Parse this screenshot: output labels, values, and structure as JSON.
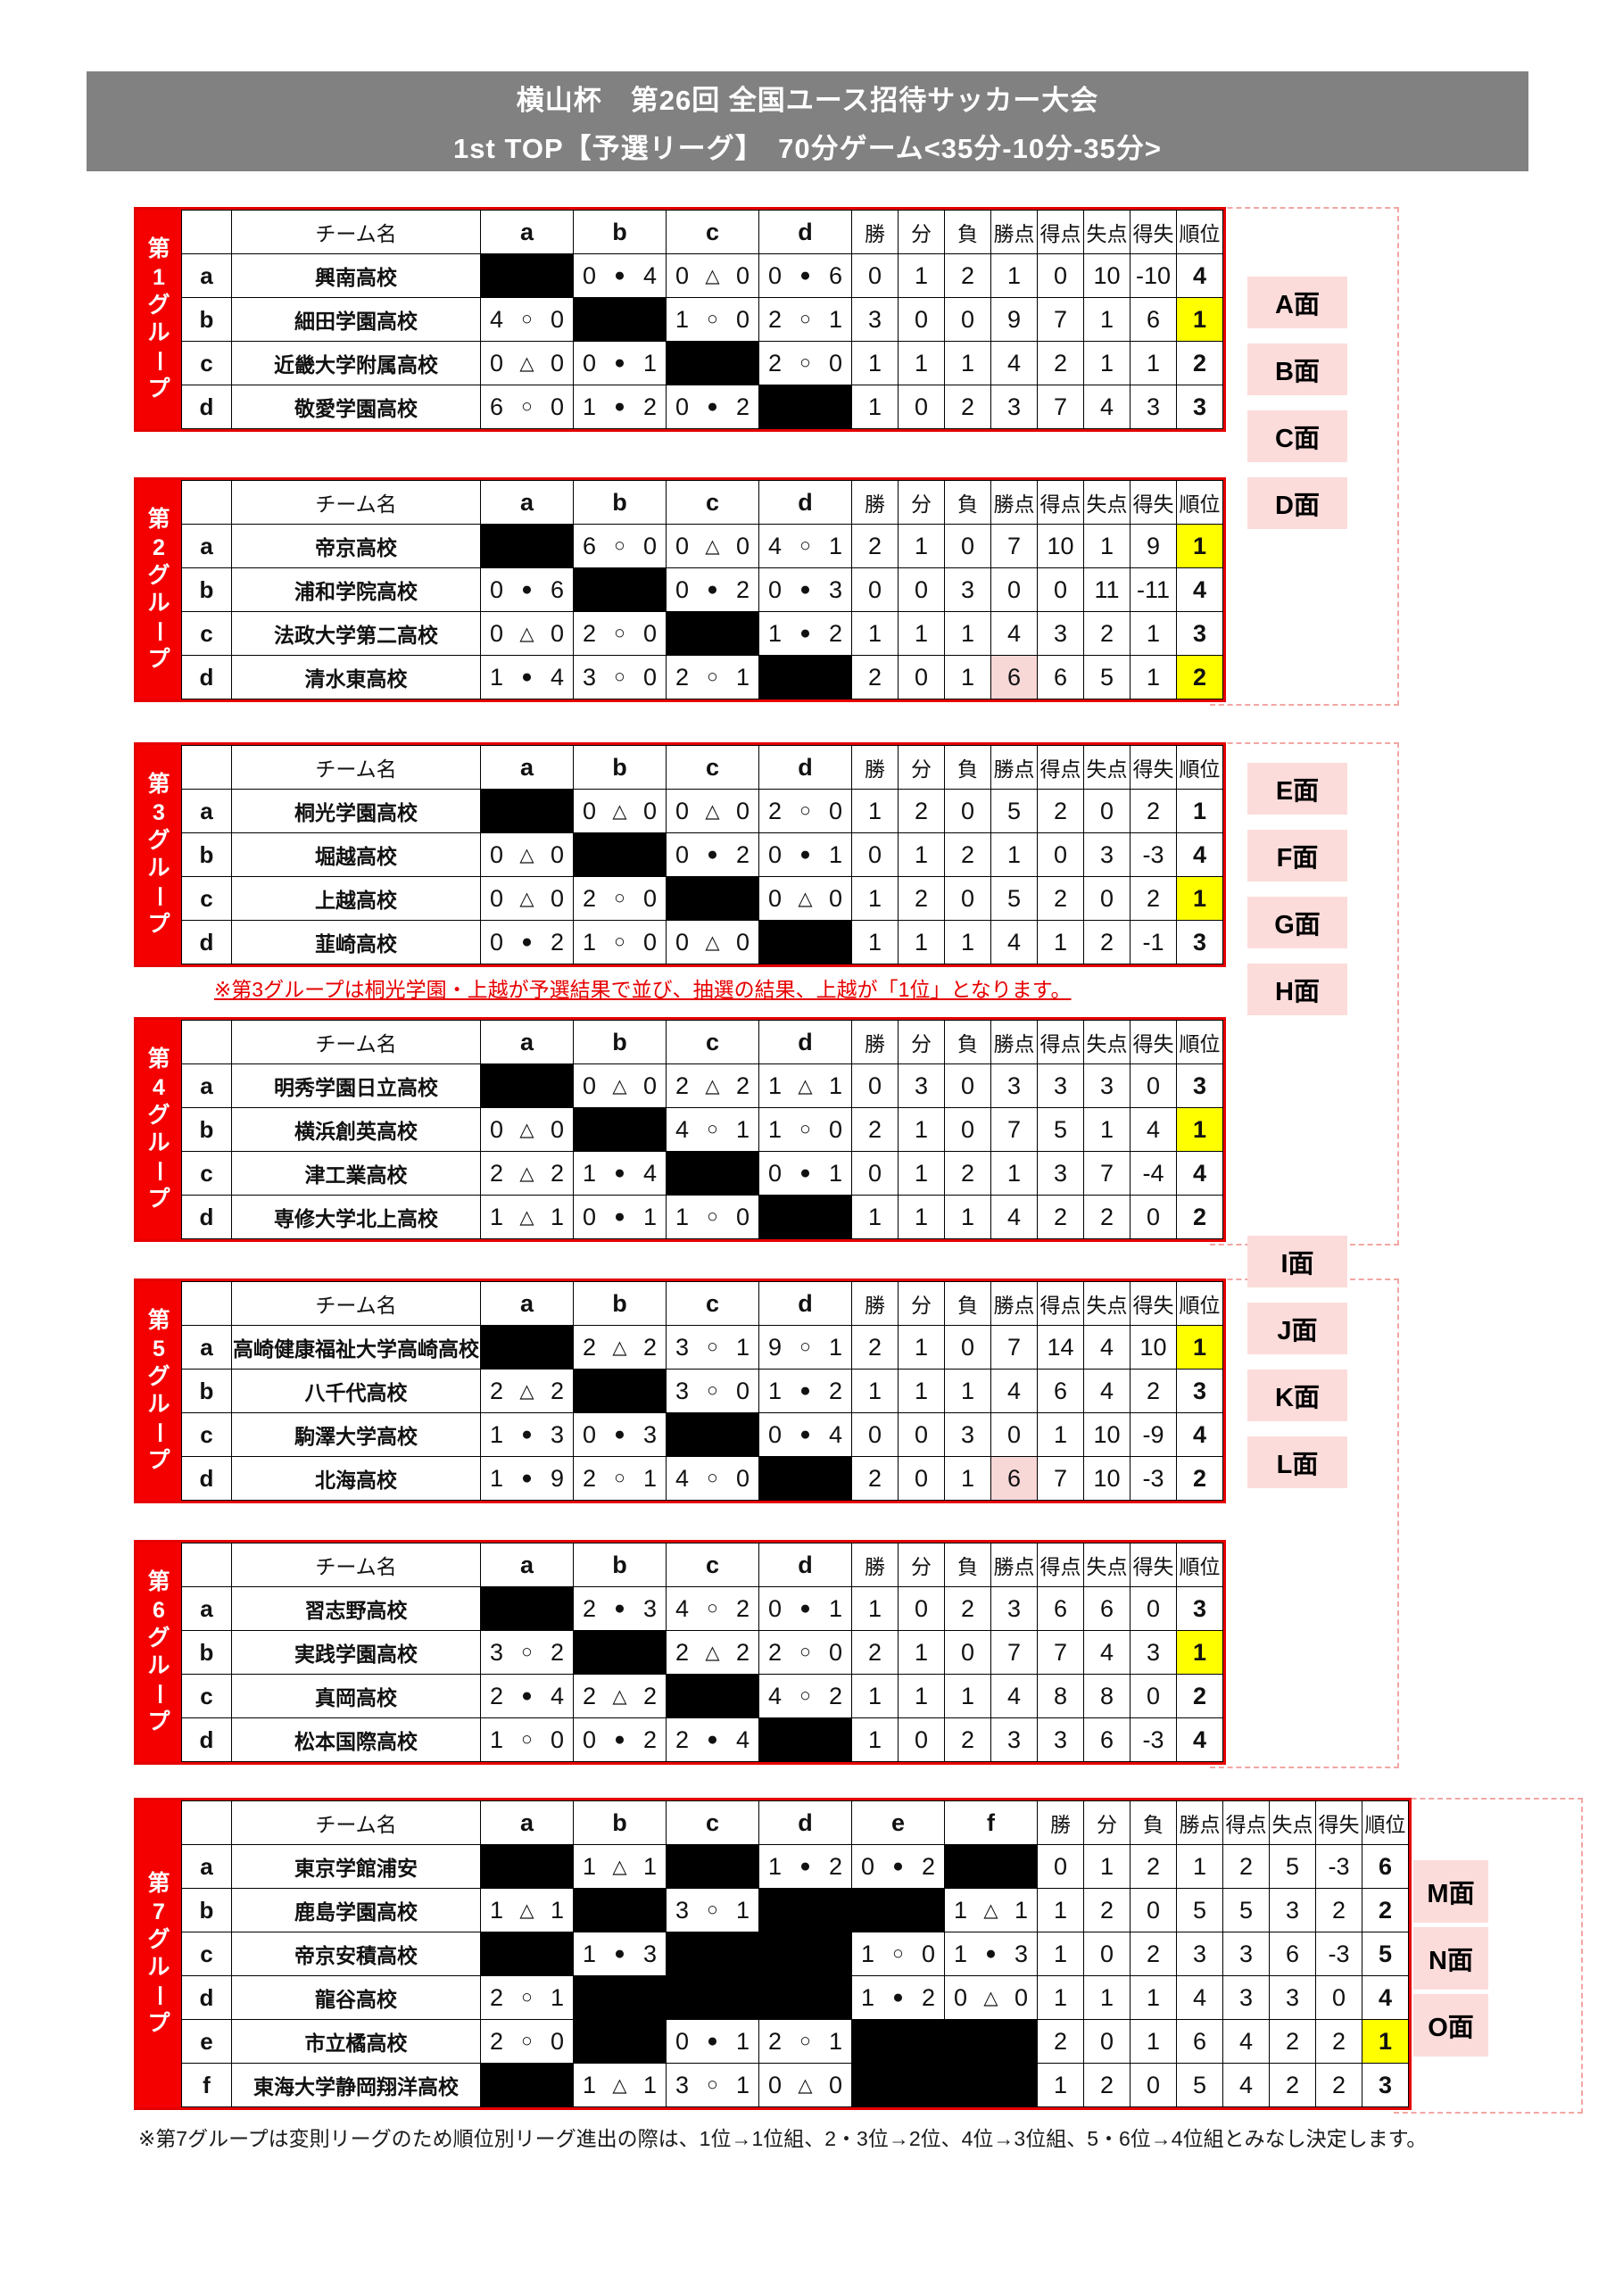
{
  "title": {
    "line1": "横山杯　第26回 全国ユース招待サッカー大会",
    "line2": "1st TOP【予選リーグ】　70分ゲーム<35分-10分-35分>"
  },
  "table_headers": {
    "team": "チーム名",
    "wins": "勝",
    "draws": "分",
    "losses": "負",
    "points": "勝点",
    "gf": "得点",
    "ga": "失点",
    "gd": "得失",
    "rank": "順位"
  },
  "result_symbols": {
    "win": "○",
    "loss": "●",
    "draw": "△"
  },
  "colors": {
    "group_bar_red": "#f40000",
    "table_border_red": "#e60000",
    "header_gray": "#818181",
    "highlight_yellow": "#ffff00",
    "highlight_pink": "#f8d7d7",
    "pitch_pink": "#fbdcda",
    "note_red": "#e60000",
    "dashed_line_pink": "#f2a6a2"
  },
  "groups": [
    {
      "label": "第1グループ",
      "match_cols": [
        "a",
        "b",
        "c",
        "d"
      ],
      "rows": [
        {
          "letter": "a",
          "team": "興南高校",
          "results": [
            null,
            "0 ● 4",
            "0 △ 0",
            "0 ● 6"
          ],
          "wins": 0,
          "draws": 1,
          "losses": 2,
          "points": 1,
          "gf": 0,
          "ga": 10,
          "gd": -10,
          "rank": 4
        },
        {
          "letter": "b",
          "team": "細田学園高校",
          "results": [
            "4 ○ 0",
            null,
            "1 ○ 0",
            "2 ○ 1"
          ],
          "wins": 3,
          "draws": 0,
          "losses": 0,
          "points": 9,
          "gf": 7,
          "ga": 1,
          "gd": 6,
          "rank": 1,
          "rank_hl": true
        },
        {
          "letter": "c",
          "team": "近畿大学附属高校",
          "results": [
            "0 △ 0",
            "0 ● 1",
            null,
            "2 ○ 0"
          ],
          "wins": 1,
          "draws": 1,
          "losses": 1,
          "points": 4,
          "gf": 2,
          "ga": 1,
          "gd": 1,
          "rank": 2
        },
        {
          "letter": "d",
          "team": "敬愛学園高校",
          "results": [
            "6 ○ 0",
            "1 ● 2",
            "0 ● 2",
            null
          ],
          "wins": 1,
          "draws": 0,
          "losses": 2,
          "points": 3,
          "gf": 7,
          "ga": 4,
          "gd": 3,
          "rank": 3
        }
      ]
    },
    {
      "label": "第2グループ",
      "match_cols": [
        "a",
        "b",
        "c",
        "d"
      ],
      "rows": [
        {
          "letter": "a",
          "team": "帝京高校",
          "results": [
            null,
            "6 ○ 0",
            "0 △ 0",
            "4 ○ 1"
          ],
          "wins": 2,
          "draws": 1,
          "losses": 0,
          "points": 7,
          "gf": 10,
          "ga": 1,
          "gd": 9,
          "rank": 1,
          "rank_hl": true
        },
        {
          "letter": "b",
          "team": "浦和学院高校",
          "results": [
            "0 ● 6",
            null,
            "0 ● 2",
            "0 ● 3"
          ],
          "wins": 0,
          "draws": 0,
          "losses": 3,
          "points": 0,
          "gf": 0,
          "ga": 11,
          "gd": -11,
          "rank": 4
        },
        {
          "letter": "c",
          "team": "法政大学第二高校",
          "results": [
            "0 △ 0",
            "2 ○ 0",
            null,
            "1 ● 2"
          ],
          "wins": 1,
          "draws": 1,
          "losses": 1,
          "points": 4,
          "gf": 3,
          "ga": 2,
          "gd": 1,
          "rank": 3
        },
        {
          "letter": "d",
          "team": "清水東高校",
          "results": [
            "1 ● 4",
            "3 ○ 0",
            "2 ○ 1",
            null
          ],
          "wins": 2,
          "draws": 0,
          "losses": 1,
          "points": 6,
          "points_hl": true,
          "gf": 6,
          "ga": 5,
          "gd": 1,
          "rank": 2,
          "rank_hl": true
        }
      ]
    },
    {
      "label": "第3グループ",
      "match_cols": [
        "a",
        "b",
        "c",
        "d"
      ],
      "note": "※第3グループは桐光学園・上越が予選結果で並び、抽選の結果、上越が「1位」となります。",
      "rows": [
        {
          "letter": "a",
          "team": "桐光学園高校",
          "results": [
            null,
            "0 △ 0",
            "0 △ 0",
            "2 ○ 0"
          ],
          "wins": 1,
          "draws": 2,
          "losses": 0,
          "points": 5,
          "gf": 2,
          "ga": 0,
          "gd": 2,
          "rank": 1
        },
        {
          "letter": "b",
          "team": "堀越高校",
          "results": [
            "0 △ 0",
            null,
            "0 ● 2",
            "0 ● 1"
          ],
          "wins": 0,
          "draws": 1,
          "losses": 2,
          "points": 1,
          "gf": 0,
          "ga": 3,
          "gd": -3,
          "rank": 4
        },
        {
          "letter": "c",
          "team": "上越高校",
          "results": [
            "0 △ 0",
            "2 ○ 0",
            null,
            "0 △ 0"
          ],
          "wins": 1,
          "draws": 2,
          "losses": 0,
          "points": 5,
          "gf": 2,
          "ga": 0,
          "gd": 2,
          "rank": 1,
          "rank_hl": true
        },
        {
          "letter": "d",
          "team": "韮崎高校",
          "results": [
            "0 ● 2",
            "1 ○ 0",
            "0 △ 0",
            null
          ],
          "wins": 1,
          "draws": 1,
          "losses": 1,
          "points": 4,
          "gf": 1,
          "ga": 2,
          "gd": -1,
          "rank": 3
        }
      ]
    },
    {
      "label": "第4グループ",
      "match_cols": [
        "a",
        "b",
        "c",
        "d"
      ],
      "rows": [
        {
          "letter": "a",
          "team": "明秀学園日立高校",
          "results": [
            null,
            "0 △ 0",
            "2 △ 2",
            "1 △ 1"
          ],
          "wins": 0,
          "draws": 3,
          "losses": 0,
          "points": 3,
          "gf": 3,
          "ga": 3,
          "gd": 0,
          "rank": 3
        },
        {
          "letter": "b",
          "team": "横浜創英高校",
          "results": [
            "0 △ 0",
            null,
            "4 ○ 1",
            "1 ○ 0"
          ],
          "wins": 2,
          "draws": 1,
          "losses": 0,
          "points": 7,
          "gf": 5,
          "ga": 1,
          "gd": 4,
          "rank": 1,
          "rank_hl": true
        },
        {
          "letter": "c",
          "team": "津工業高校",
          "results": [
            "2 △ 2",
            "1 ● 4",
            null,
            "0 ● 1"
          ],
          "wins": 0,
          "draws": 1,
          "losses": 2,
          "points": 1,
          "gf": 3,
          "ga": 7,
          "gd": -4,
          "rank": 4
        },
        {
          "letter": "d",
          "team": "専修大学北上高校",
          "results": [
            "1 △ 1",
            "0 ● 1",
            "1 ○ 0",
            null
          ],
          "wins": 1,
          "draws": 1,
          "losses": 1,
          "points": 4,
          "gf": 2,
          "ga": 2,
          "gd": 0,
          "rank": 2
        }
      ]
    },
    {
      "label": "第5グループ",
      "match_cols": [
        "a",
        "b",
        "c",
        "d"
      ],
      "rows": [
        {
          "letter": "a",
          "team": "高崎健康福祉大学高崎高校",
          "results": [
            null,
            "2 △ 2",
            "3 ○ 1",
            "9 ○ 1"
          ],
          "wins": 2,
          "draws": 1,
          "losses": 0,
          "points": 7,
          "gf": 14,
          "ga": 4,
          "gd": 10,
          "rank": 1,
          "rank_hl": true
        },
        {
          "letter": "b",
          "team": "八千代高校",
          "results": [
            "2 △ 2",
            null,
            "3 ○ 0",
            "1 ● 2"
          ],
          "wins": 1,
          "draws": 1,
          "losses": 1,
          "points": 4,
          "gf": 6,
          "ga": 4,
          "gd": 2,
          "rank": 3
        },
        {
          "letter": "c",
          "team": "駒澤大学高校",
          "results": [
            "1 ● 3",
            "0 ● 3",
            null,
            "0 ● 4"
          ],
          "wins": 0,
          "draws": 0,
          "losses": 3,
          "points": 0,
          "gf": 1,
          "ga": 10,
          "gd": -9,
          "rank": 4
        },
        {
          "letter": "d",
          "team": "北海高校",
          "results": [
            "1 ● 9",
            "2 ○ 1",
            "4 ○ 0",
            null
          ],
          "wins": 2,
          "draws": 0,
          "losses": 1,
          "points": 6,
          "points_hl": true,
          "gf": 7,
          "ga": 10,
          "gd": -3,
          "rank": 2
        }
      ]
    },
    {
      "label": "第6グループ",
      "match_cols": [
        "a",
        "b",
        "c",
        "d"
      ],
      "rows": [
        {
          "letter": "a",
          "team": "習志野高校",
          "results": [
            null,
            "2 ● 3",
            "4 ○ 2",
            "0 ● 1"
          ],
          "wins": 1,
          "draws": 0,
          "losses": 2,
          "points": 3,
          "gf": 6,
          "ga": 6,
          "gd": 0,
          "rank": 3
        },
        {
          "letter": "b",
          "team": "実践学園高校",
          "results": [
            "3 ○ 2",
            null,
            "2 △ 2",
            "2 ○ 0"
          ],
          "wins": 2,
          "draws": 1,
          "losses": 0,
          "points": 7,
          "gf": 7,
          "ga": 4,
          "gd": 3,
          "rank": 1,
          "rank_hl": true
        },
        {
          "letter": "c",
          "team": "真岡高校",
          "results": [
            "2 ● 4",
            "2 △ 2",
            null,
            "4 ○ 2"
          ],
          "wins": 1,
          "draws": 1,
          "losses": 1,
          "points": 4,
          "gf": 8,
          "ga": 8,
          "gd": 0,
          "rank": 2
        },
        {
          "letter": "d",
          "team": "松本国際高校",
          "results": [
            "1 ○ 0",
            "0 ● 2",
            "2 ● 4",
            null
          ],
          "wins": 1,
          "draws": 0,
          "losses": 2,
          "points": 3,
          "gf": 3,
          "ga": 6,
          "gd": -3,
          "rank": 4
        }
      ]
    },
    {
      "label": "第7グループ",
      "match_cols": [
        "a",
        "b",
        "c",
        "d",
        "e",
        "f"
      ],
      "note": "※第7グループは変則リーグのため順位別リーグ進出の際は、1位→1位組、2・3位→2位、4位→3位組、5・6位→4位組とみなし決定します。",
      "rows": [
        {
          "letter": "a",
          "team": "東京学館浦安",
          "results": [
            null,
            "1 △ 1",
            null,
            "1 ● 2",
            "0 ● 2",
            null
          ],
          "wins": 0,
          "draws": 1,
          "losses": 2,
          "points": 1,
          "gf": 2,
          "ga": 5,
          "gd": -3,
          "rank": 6
        },
        {
          "letter": "b",
          "team": "鹿島学園高校",
          "results": [
            "1 △ 1",
            null,
            "3 ○ 1",
            null,
            null,
            "1 △ 1"
          ],
          "wins": 1,
          "draws": 2,
          "losses": 0,
          "points": 5,
          "gf": 5,
          "ga": 3,
          "gd": 2,
          "rank": 2
        },
        {
          "letter": "c",
          "team": "帝京安積高校",
          "results": [
            null,
            "1 ● 3",
            null,
            null,
            "1 ○ 0",
            "1 ● 3"
          ],
          "wins": 1,
          "draws": 0,
          "losses": 2,
          "points": 3,
          "gf": 3,
          "ga": 6,
          "gd": -3,
          "rank": 5
        },
        {
          "letter": "d",
          "team": "龍谷高校",
          "results": [
            "2 ○ 1",
            null,
            null,
            null,
            "1 ● 2",
            "0 △ 0"
          ],
          "wins": 1,
          "draws": 1,
          "losses": 1,
          "points": 4,
          "gf": 3,
          "ga": 3,
          "gd": 0,
          "rank": 4
        },
        {
          "letter": "e",
          "team": "市立橘高校",
          "results": [
            "2 ○ 0",
            null,
            "0 ● 1",
            "2 ○ 1",
            null,
            null
          ],
          "wins": 2,
          "draws": 0,
          "losses": 1,
          "points": 6,
          "gf": 4,
          "ga": 2,
          "gd": 2,
          "rank": 1,
          "rank_hl": true
        },
        {
          "letter": "f",
          "team": "東海大学静岡翔洋高校",
          "results": [
            null,
            "1 △ 1",
            "3 ○ 1",
            "0 △ 0",
            null,
            null
          ],
          "wins": 1,
          "draws": 2,
          "losses": 0,
          "points": 5,
          "gf": 4,
          "ga": 2,
          "gd": 2,
          "rank": 3
        }
      ]
    }
  ],
  "pitches": [
    "A面",
    "B面",
    "C面",
    "D面",
    "E面",
    "F面",
    "G面",
    "H面",
    "I面",
    "J面",
    "K面",
    "L面",
    "M面",
    "N面",
    "O面"
  ]
}
